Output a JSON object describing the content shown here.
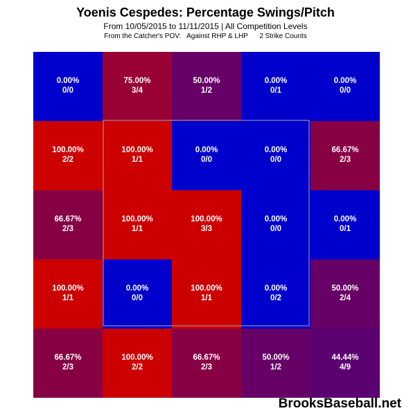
{
  "header": {
    "title": "Yoenis Cespedes: Percentage Swings/Pitch",
    "subtitle": "From 10/05/2015 to 11/11/2015 | All Competition Levels",
    "info": "From the Catcher's POV:   Against RHP & LHP      2 Strike Counts"
  },
  "watermark": "BrooksBaseball.net",
  "chart_data": {
    "type": "heatmap",
    "title": "Yoenis Cespedes: Percentage Swings/Pitch",
    "subtitle": "From 10/05/2015 to 11/11/2015 | All Competition Levels",
    "rows": 5,
    "cols": 5,
    "strike_zone": "inner 3x3 cells (rows 2-4, columns 2-4)",
    "color_scale": {
      "low": "#0000cc",
      "high": "#cc0000"
    },
    "cells": [
      [
        {
          "pct": "0.00%",
          "count": "0/0",
          "value": 0
        },
        {
          "pct": "75.00%",
          "count": "3/4",
          "value": 75
        },
        {
          "pct": "50.00%",
          "count": "1/2",
          "value": 50
        },
        {
          "pct": "0.00%",
          "count": "0/1",
          "value": 0
        },
        {
          "pct": "0.00%",
          "count": "0/0",
          "value": 0
        }
      ],
      [
        {
          "pct": "100.00%",
          "count": "2/2",
          "value": 100
        },
        {
          "pct": "100.00%",
          "count": "1/1",
          "value": 100
        },
        {
          "pct": "0.00%",
          "count": "0/0",
          "value": 0
        },
        {
          "pct": "0.00%",
          "count": "0/0",
          "value": 0
        },
        {
          "pct": "66.67%",
          "count": "2/3",
          "value": 66.67
        }
      ],
      [
        {
          "pct": "66.67%",
          "count": "2/3",
          "value": 66.67
        },
        {
          "pct": "100.00%",
          "count": "1/1",
          "value": 100
        },
        {
          "pct": "100.00%",
          "count": "3/3",
          "value": 100
        },
        {
          "pct": "0.00%",
          "count": "0/0",
          "value": 0
        },
        {
          "pct": "0.00%",
          "count": "0/1",
          "value": 0
        }
      ],
      [
        {
          "pct": "100.00%",
          "count": "1/1",
          "value": 100
        },
        {
          "pct": "0.00%",
          "count": "0/0",
          "value": 0
        },
        {
          "pct": "100.00%",
          "count": "1/1",
          "value": 100
        },
        {
          "pct": "0.00%",
          "count": "0/2",
          "value": 0
        },
        {
          "pct": "50.00%",
          "count": "2/4",
          "value": 50
        }
      ],
      [
        {
          "pct": "66.67%",
          "count": "2/3",
          "value": 66.67
        },
        {
          "pct": "100.00%",
          "count": "2/2",
          "value": 100
        },
        {
          "pct": "66.67%",
          "count": "2/3",
          "value": 66.67
        },
        {
          "pct": "50.00%",
          "count": "1/2",
          "value": 50
        },
        {
          "pct": "44.44%",
          "count": "4/9",
          "value": 44.44
        }
      ]
    ]
  }
}
